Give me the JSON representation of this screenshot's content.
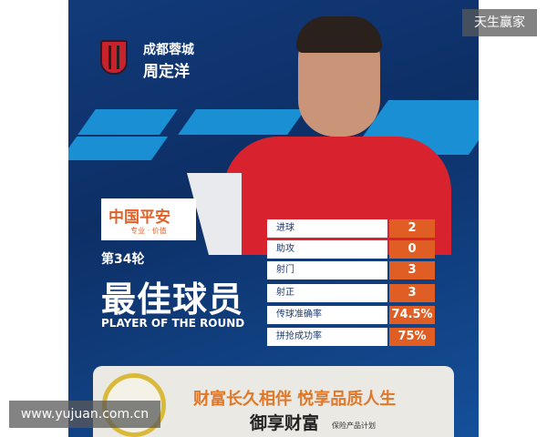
{
  "club": "成都蓉城",
  "player_name": "周定洋",
  "sponsor": {
    "name": "中国平安",
    "slogan": "专业 · 价值"
  },
  "round": "第34轮",
  "title_cn": "最佳球员",
  "title_en": "PLAYER OF THE ROUND",
  "stats": [
    {
      "label": "进球",
      "value": "2"
    },
    {
      "label": "助攻",
      "value": "0"
    },
    {
      "label": "射门",
      "value": "3"
    },
    {
      "label": "射正",
      "value": "3"
    },
    {
      "label": "传球准确率",
      "value": "74.5%"
    },
    {
      "label": "拼抢成功率",
      "value": "75%"
    }
  ],
  "ad": {
    "slogan": "财富长久相伴 悦享品质人生",
    "product": "御享财富",
    "product_sub": "保险产品计划"
  },
  "watermarks": {
    "top_right": "天生赢家",
    "bottom_left": "www.yujuan.com.cn"
  },
  "colors": {
    "background": "#123a7a",
    "accent": "#e05e24",
    "stripe": "#1a8fd4"
  }
}
